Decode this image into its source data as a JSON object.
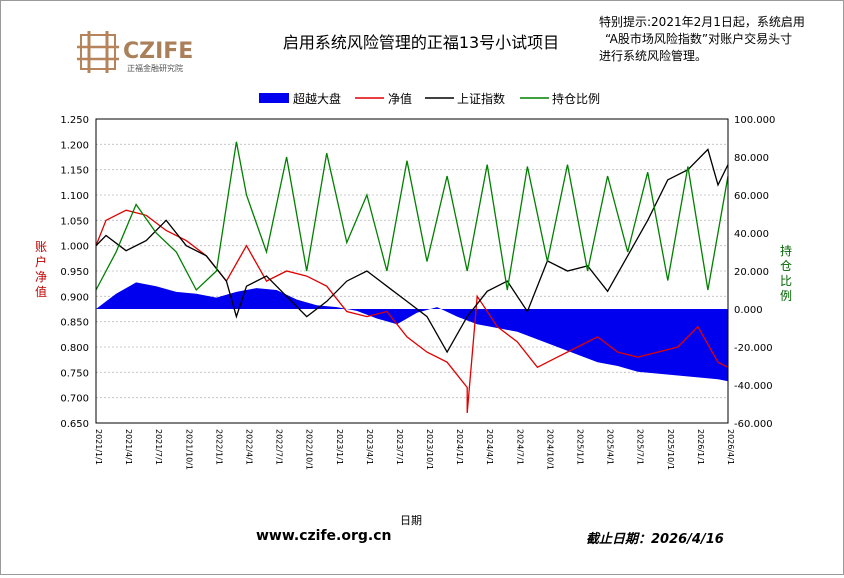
{
  "header": {
    "logo_text": "CZIFE",
    "logo_subtitle": "正福金融研究院",
    "title": "启用系统风险管理的正福13号小试项目",
    "notice_lines": [
      "特别提示:2021年2月1日起，系统启用",
      "“A股市场风险指数”对账户交易头寸",
      "进行系统风险管理。"
    ]
  },
  "footer": {
    "website": "www.czife.org.cn",
    "cutoff": "截止日期：2026/4/16"
  },
  "colors": {
    "excess": "#0000ee",
    "nav": "#e00000",
    "index": "#000000",
    "position": "#008000",
    "left_axis_title": "#c00000",
    "right_axis_title": "#006400"
  },
  "chart_data": {
    "type": "line",
    "xlabel": "日期",
    "ylabel_left": "账户净值",
    "ylabel_right": "持仓比例",
    "ylim_left": [
      0.65,
      1.25
    ],
    "ylim_right": [
      -60,
      100
    ],
    "yticks_left": [
      "0.650",
      "0.700",
      "0.750",
      "0.800",
      "0.850",
      "0.900",
      "0.950",
      "1.000",
      "1.050",
      "1.100",
      "1.150",
      "1.200",
      "1.250"
    ],
    "yticks_right": [
      "-60.000",
      "-40.000",
      "-20.000",
      "0.000",
      "20.000",
      "40.000",
      "60.000",
      "80.000",
      "100.000"
    ],
    "grid": "horizontal",
    "legend_position": "top",
    "x_range": [
      "2021-01",
      "2026-04"
    ],
    "series": [
      {
        "name": "超越大盘",
        "type": "area",
        "axis": "right",
        "x": [
          "2021-01",
          "2021-03",
          "2021-05",
          "2021-07",
          "2021-09",
          "2021-11",
          "2022-01",
          "2022-03",
          "2022-05",
          "2022-07",
          "2022-09",
          "2022-11",
          "2023-01",
          "2023-03",
          "2023-05",
          "2023-07",
          "2023-09",
          "2023-11",
          "2024-01",
          "2024-03",
          "2024-05",
          "2024-07",
          "2024-09",
          "2024-11",
          "2025-01",
          "2025-03",
          "2025-05",
          "2025-07",
          "2025-09",
          "2025-11",
          "2026-01",
          "2026-03",
          "2026-04"
        ],
        "values": [
          0,
          8,
          14,
          12,
          9,
          8,
          6,
          9,
          11,
          10,
          5,
          2,
          1,
          -1,
          -5,
          -8,
          -2,
          1,
          -4,
          -8,
          -10,
          -12,
          -16,
          -20,
          -24,
          -28,
          -30,
          -33,
          -34,
          -35,
          -36,
          -37,
          -38
        ]
      },
      {
        "name": "净值",
        "type": "line",
        "axis": "left",
        "x": [
          "2021-01",
          "2021-02",
          "2021-04",
          "2021-06",
          "2021-08",
          "2021-10",
          "2021-12",
          "2022-02",
          "2022-04",
          "2022-06",
          "2022-08",
          "2022-10",
          "2022-12",
          "2023-02",
          "2023-04",
          "2023-06",
          "2023-08",
          "2023-10",
          "2023-12",
          "2024-02",
          "2024-02",
          "2024-03",
          "2024-05",
          "2024-07",
          "2024-09",
          "2024-11",
          "2025-01",
          "2025-03",
          "2025-05",
          "2025-07",
          "2025-09",
          "2025-11",
          "2026-01",
          "2026-03",
          "2026-04"
        ],
        "values": [
          1.0,
          1.05,
          1.07,
          1.06,
          1.03,
          1.01,
          0.98,
          0.93,
          1.0,
          0.93,
          0.95,
          0.94,
          0.92,
          0.87,
          0.86,
          0.87,
          0.82,
          0.79,
          0.77,
          0.72,
          0.67,
          0.9,
          0.84,
          0.81,
          0.76,
          0.78,
          0.8,
          0.82,
          0.79,
          0.78,
          0.79,
          0.8,
          0.84,
          0.77,
          0.76
        ]
      },
      {
        "name": "上证指数",
        "type": "line",
        "axis": "left",
        "x": [
          "2021-01",
          "2021-02",
          "2021-04",
          "2021-06",
          "2021-08",
          "2021-10",
          "2021-12",
          "2022-02",
          "2022-03",
          "2022-04",
          "2022-06",
          "2022-08",
          "2022-10",
          "2022-12",
          "2023-02",
          "2023-04",
          "2023-06",
          "2023-08",
          "2023-10",
          "2023-12",
          "2024-02",
          "2024-04",
          "2024-06",
          "2024-08",
          "2024-10",
          "2024-12",
          "2025-02",
          "2025-04",
          "2025-06",
          "2025-08",
          "2025-10",
          "2025-12",
          "2026-02",
          "2026-03",
          "2026-04"
        ],
        "values": [
          1.0,
          1.02,
          0.99,
          1.01,
          1.05,
          1.0,
          0.98,
          0.93,
          0.86,
          0.92,
          0.94,
          0.9,
          0.86,
          0.89,
          0.93,
          0.95,
          0.92,
          0.89,
          0.86,
          0.79,
          0.86,
          0.91,
          0.93,
          0.87,
          0.97,
          0.95,
          0.96,
          0.91,
          0.98,
          1.05,
          1.13,
          1.15,
          1.19,
          1.12,
          1.16
        ]
      },
      {
        "name": "持仓比例",
        "type": "line",
        "axis": "right",
        "x": [
          "2021-01",
          "2021-03",
          "2021-05",
          "2021-07",
          "2021-09",
          "2021-11",
          "2022-01",
          "2022-03",
          "2022-04",
          "2022-06",
          "2022-08",
          "2022-10",
          "2022-12",
          "2023-02",
          "2023-04",
          "2023-06",
          "2023-08",
          "2023-10",
          "2023-12",
          "2024-02",
          "2024-04",
          "2024-06",
          "2024-08",
          "2024-10",
          "2024-12",
          "2025-02",
          "2025-04",
          "2025-06",
          "2025-08",
          "2025-10",
          "2025-12",
          "2026-02",
          "2026-04"
        ],
        "values": [
          10,
          30,
          55,
          40,
          30,
          10,
          20,
          88,
          60,
          30,
          80,
          20,
          82,
          35,
          60,
          20,
          78,
          25,
          70,
          20,
          76,
          10,
          75,
          25,
          76,
          20,
          70,
          30,
          72,
          15,
          75,
          10,
          70
        ]
      }
    ]
  }
}
